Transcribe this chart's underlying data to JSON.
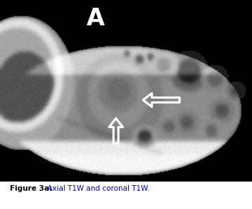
{
  "label_A": "A",
  "caption_bold": "Figure 3a:",
  "caption_regular": " Axial T1W and coronal T1W.",
  "caption_bold_color": "#000000",
  "caption_regular_color": "#0000cc",
  "fig_width": 3.58,
  "fig_height": 2.97,
  "dpi": 100
}
